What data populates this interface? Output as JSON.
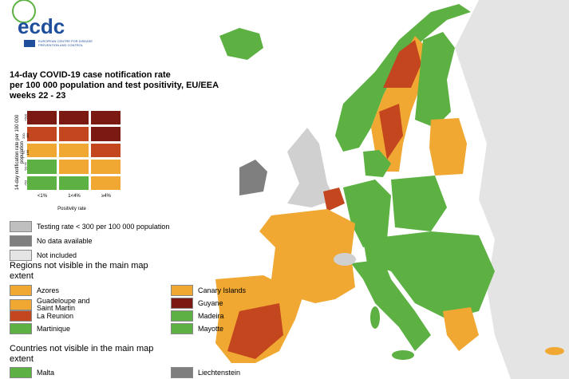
{
  "header": {
    "logo_text": "ecdc",
    "logo_subtitle": "EUROPEAN CENTRE FOR DISEASE PREVENTION AND CONTROL",
    "title": [
      "14-day COVID-19 case notification rate",
      "per 100 000 population and test positivity, EU/EEA",
      "weeks 22 - 23"
    ]
  },
  "matrix": {
    "y_label": "14-day notification rate per 100 000 population",
    "y_categories": [
      ">500",
      "200-499",
      "75-199",
      "50-74",
      "<50"
    ],
    "x_categories": [
      "<1%",
      "1<4%",
      "≥4%"
    ],
    "x_label": "Positivity rate",
    "colors": [
      [
        "#7b1a12",
        "#7b1a12",
        "#7b1a12"
      ],
      [
        "#c3461f",
        "#c3461f",
        "#7b1a12"
      ],
      [
        "#f0a832",
        "#f0a832",
        "#c3461f"
      ],
      [
        "#5cb142",
        "#f0a832",
        "#f0a832"
      ],
      [
        "#5cb142",
        "#5cb142",
        "#f0a832"
      ]
    ]
  },
  "legend": {
    "items": [
      {
        "label": "Testing rate < 300 per 100 000 population",
        "color": "#bfbfbf"
      },
      {
        "label": "No data available",
        "color": "#7f7f7f"
      },
      {
        "label": "Not included",
        "color": "#e4e4e4"
      }
    ]
  },
  "regions": {
    "title": "Regions not visible in the main map extent",
    "items": [
      {
        "label": "Azores",
        "color": "#f0a832"
      },
      {
        "label": "Canary Islands",
        "color": "#f0a832"
      },
      {
        "label": "Guadeloupe and Saint Martin",
        "color": "#f0a832"
      },
      {
        "label": "Guyane",
        "color": "#7b1a12"
      },
      {
        "label": "La Reunion",
        "color": "#c3461f"
      },
      {
        "label": "Madeira",
        "color": "#5cb142"
      },
      {
        "label": "Martinique",
        "color": "#5cb142"
      },
      {
        "label": "Mayotte",
        "color": "#5cb142"
      }
    ]
  },
  "countries": {
    "title": "Countries not visible in the main map extent",
    "items": [
      {
        "label": "Malta",
        "color": "#5cb142"
      },
      {
        "label": "Liechtenstein",
        "color": "#7f7f7f"
      }
    ]
  }
}
